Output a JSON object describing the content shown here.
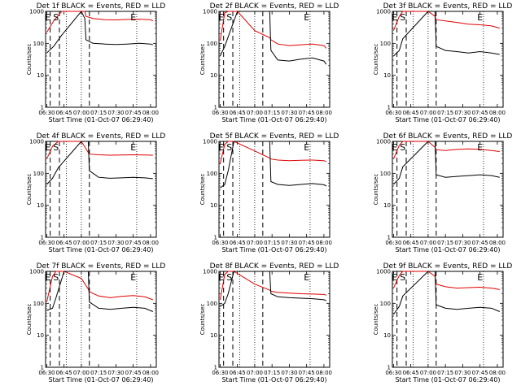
{
  "colors": {
    "events": "#000000",
    "lld": "#e00000"
  },
  "chart_data": [
    {
      "type": "line",
      "title": "Det 1f BLACK = Events, RED = LLD",
      "xlabel": "Start Time (01-Oct-07 06:29:40)",
      "ylabel": "Counts/sec",
      "yscale": "log",
      "ylim": [
        1,
        1000
      ],
      "ytick_labels": [
        "1",
        "10",
        "100",
        "1000"
      ],
      "xtick_labels": [
        "06:30",
        "06:45",
        "07:00",
        "07:15",
        "07:30",
        "07:45",
        "08:00"
      ],
      "x": [
        "06:30",
        "06:36",
        "06:43",
        "07:00",
        "07:03",
        "07:04",
        "07:10",
        "07:20",
        "07:30",
        "07:40",
        "07:50",
        "08:00",
        "08:02"
      ],
      "series": [
        {
          "color": "#000000",
          "values": [
            50,
            80,
            180,
            1000,
            600,
            130,
            100,
            95,
            92,
            95,
            100,
            95,
            90
          ]
        },
        {
          "color": "#e00000",
          "values": [
            220,
            500,
            1000,
            1000,
            1000,
            700,
            600,
            550,
            540,
            560,
            570,
            550,
            500
          ]
        }
      ],
      "annotations": [
        "E",
        "S",
        "E"
      ]
    },
    {
      "type": "line",
      "title": "Det 2f BLACK = Events, RED = LLD",
      "xlabel": "Start Time (01-Oct-07 06:29:40)",
      "ylabel": "Counts/sec",
      "yscale": "log",
      "ylim": [
        1,
        1000
      ],
      "ytick_labels": [
        "1",
        "10",
        "100",
        "1000"
      ],
      "xtick_labels": [
        "06:30",
        "06:45",
        "07:00",
        "07:15",
        "07:30",
        "07:45",
        "08:00"
      ],
      "x": [
        "06:30",
        "06:34",
        "06:37",
        "06:45",
        "07:00",
        "07:13",
        "07:14",
        "07:20",
        "07:30",
        "07:40",
        "07:50",
        "08:00",
        "08:02"
      ],
      "series": [
        {
          "color": "#000000",
          "values": [
            40,
            80,
            160,
            1000,
            1000,
            1000,
            60,
            30,
            28,
            32,
            35,
            28,
            22
          ]
        },
        {
          "color": "#e00000",
          "values": [
            120,
            900,
            1000,
            1000,
            250,
            150,
            130,
            95,
            85,
            90,
            95,
            85,
            70
          ]
        }
      ],
      "annotations": [
        "E",
        "S",
        "E"
      ]
    },
    {
      "type": "line",
      "title": "Det 3f BLACK = Events, RED = LLD",
      "xlabel": "Start Time (01-Oct-07 06:29:40)",
      "ylabel": "Counts/sec",
      "yscale": "log",
      "ylim": [
        1,
        1000
      ],
      "ytick_labels": [
        "1",
        "10",
        "100",
        "1000"
      ],
      "xtick_labels": [
        "06:30",
        "06:45",
        "07:00",
        "07:15",
        "07:30",
        "07:45",
        "08:00"
      ],
      "x": [
        "06:30",
        "06:35",
        "06:38",
        "07:00",
        "07:06",
        "07:07",
        "07:15",
        "07:25",
        "07:35",
        "07:45",
        "07:55",
        "08:02"
      ],
      "series": [
        {
          "color": "#000000",
          "values": [
            40,
            60,
            140,
            1000,
            1000,
            80,
            60,
            55,
            50,
            55,
            50,
            45
          ]
        },
        {
          "color": "#e00000",
          "values": [
            250,
            700,
            1000,
            1000,
            700,
            550,
            500,
            450,
            400,
            380,
            350,
            300
          ]
        }
      ],
      "annotations": [
        "E",
        "S",
        "E"
      ]
    },
    {
      "type": "line",
      "title": "Det 4f BLACK = Events, RED = LLD",
      "xlabel": "Start Time (01-Oct-07 06:29:40)",
      "ylabel": "Counts/sec",
      "yscale": "log",
      "ylim": [
        1,
        1000
      ],
      "ytick_labels": [
        "1",
        "10",
        "100",
        "1000"
      ],
      "xtick_labels": [
        "06:30",
        "06:45",
        "07:00",
        "07:15",
        "07:30",
        "07:45",
        "08:00"
      ],
      "x": [
        "06:30",
        "06:35",
        "06:40",
        "07:00",
        "07:06",
        "07:07",
        "07:15",
        "07:25",
        "07:35",
        "07:45",
        "07:55",
        "08:02"
      ],
      "series": [
        {
          "color": "#000000",
          "values": [
            45,
            70,
            150,
            1000,
            1000,
            120,
            75,
            70,
            72,
            75,
            72,
            68
          ]
        },
        {
          "color": "#e00000",
          "values": [
            280,
            700,
            1000,
            1000,
            450,
            400,
            380,
            370,
            375,
            380,
            375,
            370
          ]
        }
      ],
      "annotations": [
        "E",
        "S",
        "E"
      ]
    },
    {
      "type": "line",
      "title": "Det 5f BLACK = Events, RED = LLD",
      "xlabel": "Start Time (01-Oct-07 06:29:40)",
      "ylabel": "Counts/sec",
      "yscale": "log",
      "ylim": [
        1,
        1000
      ],
      "ytick_labels": [
        "1",
        "10",
        "100",
        "1000"
      ],
      "xtick_labels": [
        "06:30",
        "06:45",
        "07:00",
        "07:15",
        "07:30",
        "07:45",
        "08:00"
      ],
      "x": [
        "06:30",
        "06:34",
        "06:37",
        "06:42",
        "07:00",
        "07:13",
        "07:14",
        "07:20",
        "07:30",
        "07:40",
        "07:50",
        "08:00",
        "08:02"
      ],
      "series": [
        {
          "color": "#000000",
          "values": [
            35,
            45,
            120,
            1000,
            1000,
            1000,
            55,
            45,
            42,
            45,
            48,
            44,
            40
          ]
        },
        {
          "color": "#e00000",
          "values": [
            200,
            800,
            1000,
            1000,
            500,
            300,
            280,
            260,
            250,
            255,
            260,
            250,
            230
          ]
        }
      ],
      "annotations": [
        "E",
        "S",
        "E"
      ]
    },
    {
      "type": "line",
      "title": "Det 6f BLACK = Events, RED = LLD",
      "xlabel": "Start Time (01-Oct-07 06:29:40)",
      "ylabel": "Counts/sec",
      "yscale": "log",
      "ylim": [
        1,
        1000
      ],
      "ytick_labels": [
        "1",
        "10",
        "100",
        "1000"
      ],
      "xtick_labels": [
        "06:30",
        "06:45",
        "07:00",
        "07:15",
        "07:30",
        "07:45",
        "08:00"
      ],
      "x": [
        "06:30",
        "06:35",
        "06:38",
        "07:00",
        "07:06",
        "07:07",
        "07:15",
        "07:25",
        "07:35",
        "07:45",
        "07:55",
        "08:02"
      ],
      "series": [
        {
          "color": "#000000",
          "values": [
            45,
            70,
            160,
            1000,
            1000,
            90,
            75,
            80,
            85,
            90,
            85,
            75
          ]
        },
        {
          "color": "#e00000",
          "values": [
            280,
            750,
            1000,
            1000,
            650,
            550,
            520,
            560,
            580,
            560,
            520,
            480
          ]
        }
      ],
      "annotations": [
        "E",
        "S",
        "E"
      ]
    },
    {
      "type": "line",
      "title": "Det 7f BLACK = Events, RED = LLD",
      "xlabel": "Start Time (01-Oct-07 06:29:40)",
      "ylabel": "Counts/sec",
      "yscale": "log",
      "ylim": [
        1,
        1000
      ],
      "ytick_labels": [
        "1",
        "10",
        "100",
        "1000"
      ],
      "xtick_labels": [
        "06:30",
        "06:45",
        "07:00",
        "07:15",
        "07:30",
        "07:45",
        "08:00"
      ],
      "x": [
        "06:30",
        "06:35",
        "06:38",
        "06:45",
        "07:00",
        "07:06",
        "07:07",
        "07:15",
        "07:25",
        "07:35",
        "07:45",
        "07:55",
        "08:02"
      ],
      "series": [
        {
          "color": "#000000",
          "values": [
            60,
            70,
            150,
            1000,
            1000,
            1000,
            110,
            70,
            65,
            70,
            75,
            70,
            55
          ]
        },
        {
          "color": "#e00000",
          "values": [
            110,
            700,
            1000,
            1000,
            600,
            280,
            230,
            170,
            150,
            165,
            175,
            160,
            130
          ]
        }
      ],
      "annotations": [
        "E",
        "S",
        "E"
      ]
    },
    {
      "type": "line",
      "title": "Det 8f BLACK = Events, RED = LLD",
      "xlabel": "Start Time (01-Oct-07 06:29:40)",
      "ylabel": "Counts/sec",
      "yscale": "log",
      "ylim": [
        1,
        1000
      ],
      "ytick_labels": [
        "1",
        "10",
        "100",
        "1000"
      ],
      "xtick_labels": [
        "06:30",
        "06:45",
        "07:00",
        "07:15",
        "07:30",
        "07:45",
        "08:00"
      ],
      "x": [
        "06:30",
        "06:34",
        "06:37",
        "06:42",
        "07:00",
        "07:13",
        "07:14",
        "07:20",
        "07:30",
        "07:40",
        "07:50",
        "08:00",
        "08:02"
      ],
      "series": [
        {
          "color": "#000000",
          "values": [
            80,
            100,
            200,
            1000,
            1000,
            1000,
            200,
            160,
            150,
            145,
            140,
            130,
            120
          ]
        },
        {
          "color": "#e00000",
          "values": [
            130,
            800,
            1000,
            1000,
            400,
            260,
            240,
            220,
            210,
            200,
            195,
            190,
            180
          ]
        }
      ],
      "annotations": [
        "E",
        "S",
        "E"
      ]
    },
    {
      "type": "line",
      "title": "Det 9f BLACK = Events, RED = LLD",
      "xlabel": "Start Time (01-Oct-07 06:29:40)",
      "ylabel": "Counts/sec",
      "yscale": "log",
      "ylim": [
        1,
        1000
      ],
      "ytick_labels": [
        "1",
        "10",
        "100",
        "1000"
      ],
      "xtick_labels": [
        "06:30",
        "06:45",
        "07:00",
        "07:15",
        "07:30",
        "07:45",
        "08:00"
      ],
      "x": [
        "06:30",
        "06:35",
        "06:38",
        "07:00",
        "07:06",
        "07:07",
        "07:15",
        "07:25",
        "07:35",
        "07:45",
        "07:55",
        "08:02"
      ],
      "series": [
        {
          "color": "#000000",
          "values": [
            45,
            80,
            170,
            1000,
            1000,
            90,
            70,
            65,
            70,
            75,
            70,
            55
          ]
        },
        {
          "color": "#e00000",
          "values": [
            300,
            750,
            1000,
            1000,
            700,
            400,
            330,
            300,
            310,
            320,
            300,
            270
          ]
        }
      ],
      "annotations": [
        "E",
        "S",
        "E"
      ]
    }
  ]
}
